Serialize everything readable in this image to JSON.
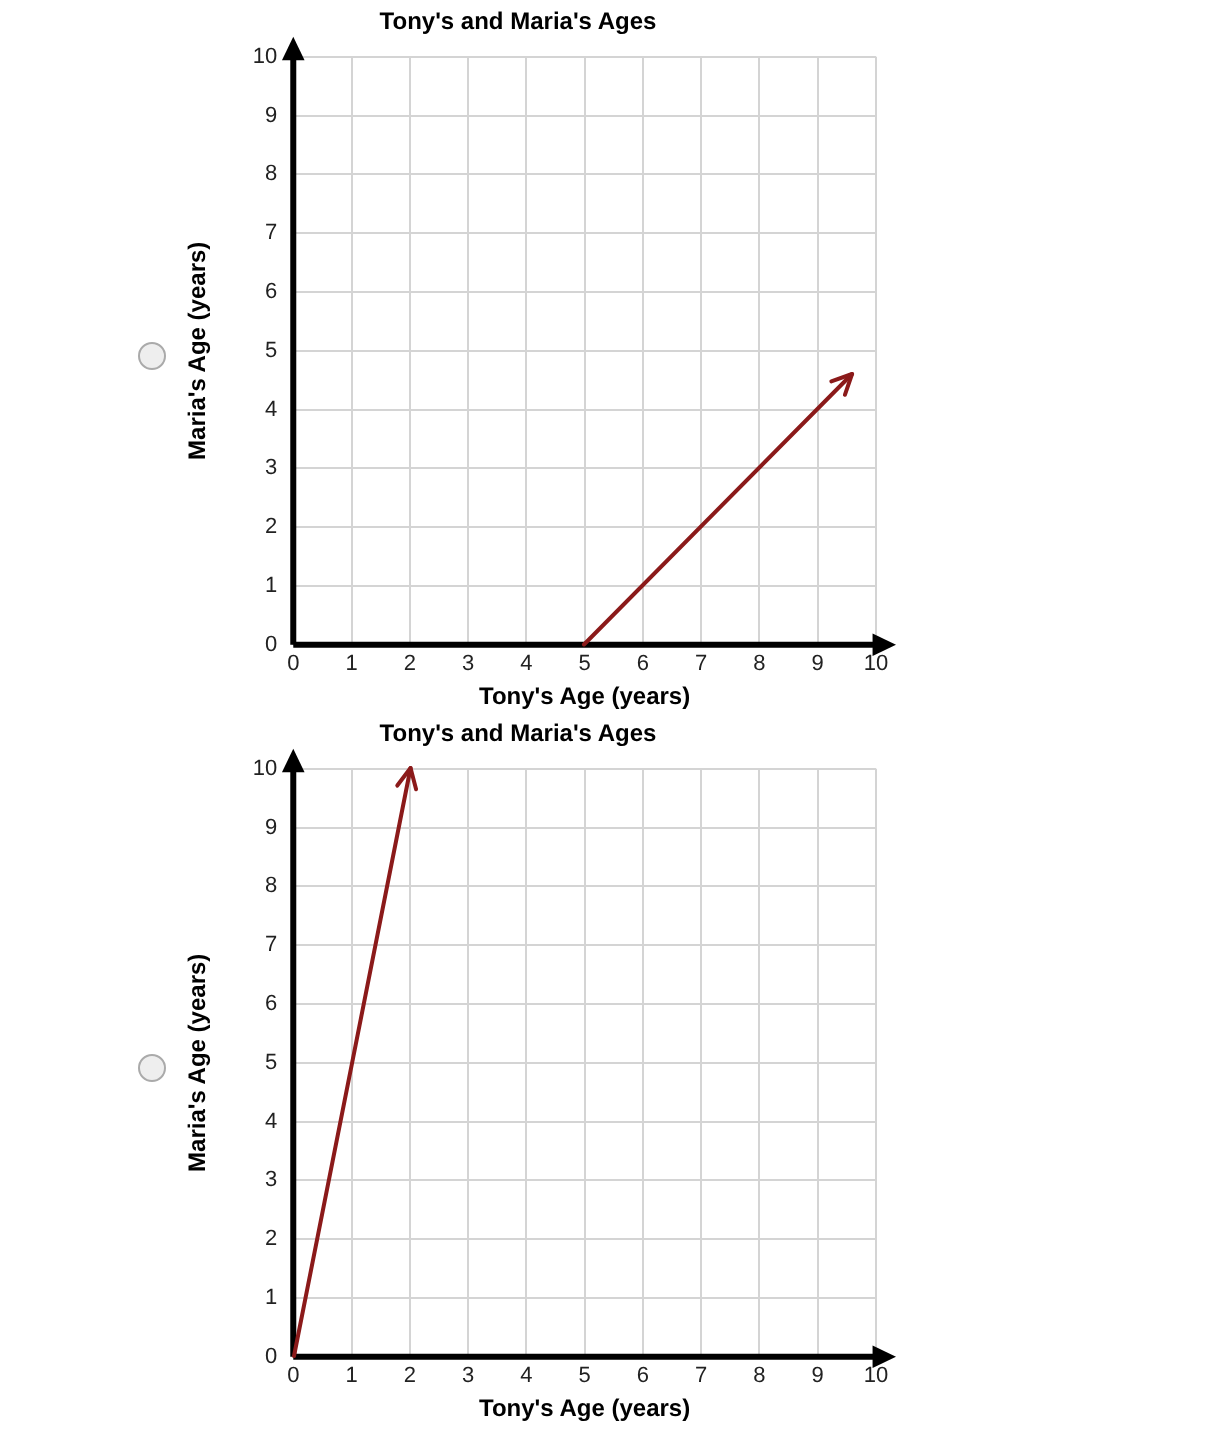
{
  "chart_data": [
    {
      "type": "line",
      "title": "Tony's and Maria's Ages",
      "xlabel": "Tony's Age (years)",
      "ylabel": "Maria's Age (years)",
      "xlim": [
        0,
        10
      ],
      "ylim": [
        0,
        10
      ],
      "xticks": [
        0,
        1,
        2,
        3,
        4,
        5,
        6,
        7,
        8,
        9,
        10
      ],
      "yticks": [
        0,
        1,
        2,
        3,
        4,
        5,
        6,
        7,
        8,
        9,
        10
      ],
      "grid": true,
      "marker": "none",
      "line_style": "solid",
      "series": [
        {
          "color": "#8b1a1a",
          "x": [
            5,
            9.6
          ],
          "values": [
            0,
            4.6
          ]
        }
      ]
    },
    {
      "type": "line",
      "title": "Tony's and Maria's Ages",
      "xlabel": "Tony's Age (years)",
      "ylabel": "Maria's Age (years)",
      "xlim": [
        0,
        10
      ],
      "ylim": [
        0,
        10
      ],
      "xticks": [
        0,
        1,
        2,
        3,
        4,
        5,
        6,
        7,
        8,
        9,
        10
      ],
      "yticks": [
        0,
        1,
        2,
        3,
        4,
        5,
        6,
        7,
        8,
        9,
        10
      ],
      "grid": true,
      "marker": "none",
      "line_style": "solid",
      "series": [
        {
          "color": "#8b1a1a",
          "x": [
            0,
            2
          ],
          "values": [
            0,
            10
          ]
        }
      ]
    }
  ]
}
